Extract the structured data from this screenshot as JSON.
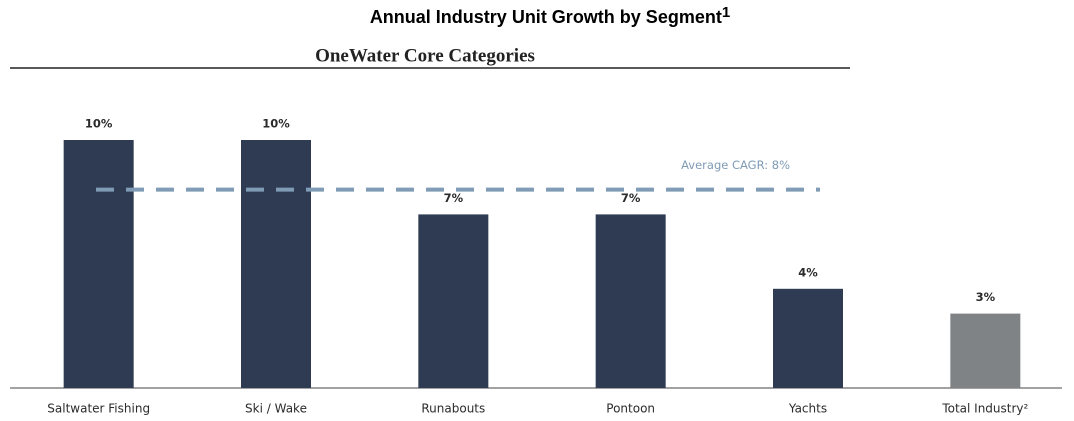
{
  "chart_data": {
    "type": "bar",
    "title": "Annual Industry Unit Growth by Segment",
    "title_footnote": "1",
    "subtitle": "OneWater Core Categories",
    "categories": [
      "Saltwater Fishing",
      "Ski / Wake",
      "Runabouts",
      "Pontoon",
      "Yachts",
      "Total Industry²"
    ],
    "values": [
      10,
      10,
      7,
      7,
      4,
      3
    ],
    "value_labels": [
      "10%",
      "10%",
      "7%",
      "7%",
      "4%",
      "3%"
    ],
    "colors": [
      "#2e3b52",
      "#2e3b52",
      "#2e3b52",
      "#2e3b52",
      "#2e3b52",
      "#808385"
    ],
    "average": {
      "label": "Average CAGR: 8%",
      "value": 8,
      "color": "#7f9bb5"
    }
  }
}
